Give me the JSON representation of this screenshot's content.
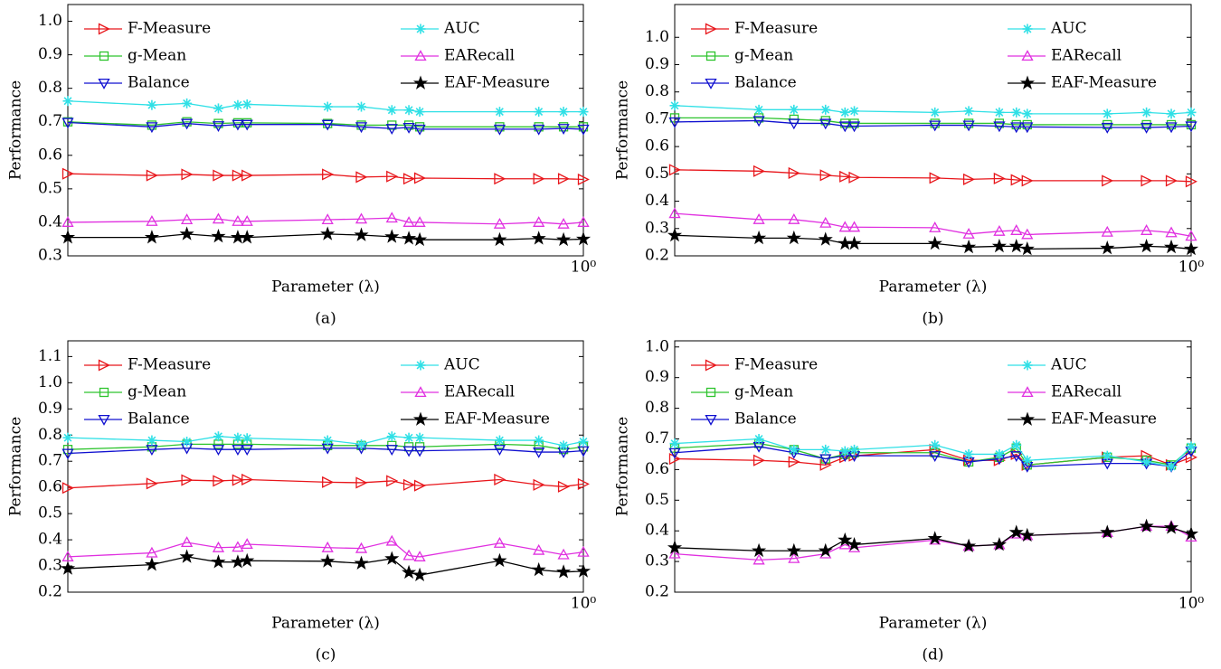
{
  "chart_data": [
    {
      "type": "line",
      "subtitle": "(a)",
      "xlabel": "Parameter (λ)",
      "ylabel": "Performance",
      "xlog": true,
      "xlim": [
        0.2,
        1
      ],
      "xticks": [
        {
          "value": 1,
          "label": "10⁰"
        }
      ],
      "ylim": [
        0.3,
        1.05
      ],
      "yticks": [
        0.3,
        0.4,
        0.5,
        0.6,
        0.7,
        0.8,
        0.9,
        {
          "value": 1,
          "label": "1.0"
        }
      ],
      "x": [
        0.2,
        0.26,
        0.29,
        0.32,
        0.34,
        0.35,
        0.45,
        0.5,
        0.55,
        0.58,
        0.6,
        0.77,
        0.87,
        0.94,
        1
      ],
      "series": [
        {
          "name": "F-Measure",
          "color": "#e8161b",
          "marker": "triangle-right",
          "values": [
            0.545,
            0.54,
            0.543,
            0.54,
            0.54,
            0.54,
            0.543,
            0.535,
            0.537,
            0.53,
            0.532,
            0.53,
            0.53,
            0.53,
            0.528
          ]
        },
        {
          "name": "g-Mean",
          "color": "#2ec42e",
          "marker": "square",
          "values": [
            0.7,
            0.69,
            0.7,
            0.695,
            0.697,
            0.697,
            0.695,
            0.69,
            0.69,
            0.69,
            0.685,
            0.685,
            0.685,
            0.685,
            0.685
          ]
        },
        {
          "name": "Balance",
          "color": "#1010d0",
          "marker": "triangle-down",
          "values": [
            0.698,
            0.685,
            0.695,
            0.688,
            0.692,
            0.692,
            0.692,
            0.685,
            0.68,
            0.683,
            0.678,
            0.678,
            0.678,
            0.68,
            0.678
          ]
        },
        {
          "name": "AUC",
          "color": "#30e0e6",
          "marker": "asterisk",
          "values": [
            0.762,
            0.75,
            0.755,
            0.74,
            0.75,
            0.752,
            0.745,
            0.745,
            0.735,
            0.735,
            0.73,
            0.73,
            0.73,
            0.73,
            0.73
          ]
        },
        {
          "name": "EARecall",
          "color": "#e030e0",
          "marker": "triangle-up",
          "values": [
            0.4,
            0.403,
            0.408,
            0.41,
            0.403,
            0.403,
            0.408,
            0.41,
            0.413,
            0.4,
            0.4,
            0.395,
            0.4,
            0.395,
            0.4
          ]
        },
        {
          "name": "EAF-Measure",
          "color": "#000000",
          "marker": "star",
          "values": [
            0.355,
            0.355,
            0.365,
            0.358,
            0.355,
            0.355,
            0.365,
            0.362,
            0.357,
            0.352,
            0.348,
            0.348,
            0.352,
            0.348,
            0.35
          ]
        }
      ]
    },
    {
      "type": "line",
      "subtitle": "(b)",
      "xlabel": "Parameter (λ)",
      "ylabel": "Performance",
      "xlog": true,
      "xlim": [
        0.2,
        1
      ],
      "xticks": [
        {
          "value": 1,
          "label": "10⁰"
        }
      ],
      "ylim": [
        0.2,
        1.12
      ],
      "yticks": [
        0.2,
        0.3,
        0.4,
        0.5,
        0.6,
        0.7,
        0.8,
        0.9,
        {
          "value": 1,
          "label": "1.0"
        }
      ],
      "x": [
        0.2,
        0.26,
        0.29,
        0.32,
        0.34,
        0.35,
        0.45,
        0.5,
        0.55,
        0.58,
        0.6,
        0.77,
        0.87,
        0.94,
        1
      ],
      "series": [
        {
          "name": "F-Measure",
          "color": "#e8161b",
          "marker": "triangle-right",
          "values": [
            0.515,
            0.51,
            0.503,
            0.495,
            0.49,
            0.487,
            0.485,
            0.48,
            0.483,
            0.478,
            0.475,
            0.475,
            0.475,
            0.475,
            0.472
          ]
        },
        {
          "name": "g-Mean",
          "color": "#2ec42e",
          "marker": "square",
          "values": [
            0.705,
            0.705,
            0.7,
            0.695,
            0.685,
            0.685,
            0.685,
            0.685,
            0.685,
            0.68,
            0.68,
            0.68,
            0.68,
            0.68,
            0.68
          ]
        },
        {
          "name": "Balance",
          "color": "#1010d0",
          "marker": "triangle-down",
          "values": [
            0.69,
            0.695,
            0.685,
            0.685,
            0.675,
            0.675,
            0.678,
            0.678,
            0.675,
            0.672,
            0.672,
            0.67,
            0.67,
            0.672,
            0.675
          ]
        },
        {
          "name": "AUC",
          "color": "#30e0e6",
          "marker": "asterisk",
          "values": [
            0.75,
            0.735,
            0.735,
            0.735,
            0.725,
            0.73,
            0.725,
            0.73,
            0.725,
            0.725,
            0.72,
            0.72,
            0.725,
            0.72,
            0.725
          ]
        },
        {
          "name": "EARecall",
          "color": "#e030e0",
          "marker": "triangle-up",
          "values": [
            0.355,
            0.333,
            0.333,
            0.32,
            0.305,
            0.305,
            0.303,
            0.28,
            0.29,
            0.293,
            0.278,
            0.287,
            0.293,
            0.285,
            0.272
          ]
        },
        {
          "name": "EAF-Measure",
          "color": "#000000",
          "marker": "star",
          "values": [
            0.275,
            0.265,
            0.265,
            0.26,
            0.245,
            0.245,
            0.245,
            0.232,
            0.235,
            0.235,
            0.225,
            0.228,
            0.235,
            0.232,
            0.225
          ]
        }
      ]
    },
    {
      "type": "line",
      "subtitle": "(c)",
      "xlabel": "Parameter (λ)",
      "ylabel": "Performance",
      "xlog": true,
      "xlim": [
        0.2,
        1
      ],
      "xticks": [
        {
          "value": 1,
          "label": "10⁰"
        }
      ],
      "ylim": [
        0.2,
        1.16
      ],
      "yticks": [
        0.2,
        0.3,
        0.4,
        0.5,
        0.6,
        0.7,
        0.8,
        0.9,
        {
          "value": 1,
          "label": "1.0"
        },
        1.1
      ],
      "x": [
        0.2,
        0.26,
        0.29,
        0.32,
        0.34,
        0.35,
        0.45,
        0.5,
        0.55,
        0.58,
        0.6,
        0.77,
        0.87,
        0.94,
        1
      ],
      "series": [
        {
          "name": "F-Measure",
          "color": "#e8161b",
          "marker": "triangle-right",
          "values": [
            0.598,
            0.615,
            0.628,
            0.625,
            0.628,
            0.63,
            0.62,
            0.618,
            0.625,
            0.61,
            0.607,
            0.63,
            0.61,
            0.603,
            0.613
          ]
        },
        {
          "name": "g-Mean",
          "color": "#2ec42e",
          "marker": "square",
          "values": [
            0.745,
            0.755,
            0.765,
            0.765,
            0.765,
            0.765,
            0.76,
            0.76,
            0.76,
            0.755,
            0.755,
            0.765,
            0.76,
            0.745,
            0.755
          ]
        },
        {
          "name": "Balance",
          "color": "#1010d0",
          "marker": "triangle-down",
          "values": [
            0.73,
            0.745,
            0.75,
            0.745,
            0.745,
            0.745,
            0.75,
            0.75,
            0.745,
            0.74,
            0.74,
            0.745,
            0.735,
            0.735,
            0.74
          ]
        },
        {
          "name": "AUC",
          "color": "#30e0e6",
          "marker": "asterisk",
          "values": [
            0.79,
            0.78,
            0.775,
            0.795,
            0.79,
            0.788,
            0.78,
            0.765,
            0.795,
            0.79,
            0.79,
            0.78,
            0.78,
            0.76,
            0.775
          ]
        },
        {
          "name": "EARecall",
          "color": "#e030e0",
          "marker": "triangle-up",
          "values": [
            0.335,
            0.35,
            0.39,
            0.37,
            0.372,
            0.383,
            0.37,
            0.367,
            0.395,
            0.34,
            0.335,
            0.387,
            0.36,
            0.343,
            0.353
          ]
        },
        {
          "name": "EAF-Measure",
          "color": "#000000",
          "marker": "star",
          "values": [
            0.29,
            0.305,
            0.335,
            0.315,
            0.315,
            0.32,
            0.318,
            0.31,
            0.328,
            0.275,
            0.265,
            0.32,
            0.285,
            0.277,
            0.28
          ]
        }
      ]
    },
    {
      "type": "line",
      "subtitle": "(d)",
      "xlabel": "Parameter (λ)",
      "ylabel": "Performance",
      "xlog": true,
      "xlim": [
        0.2,
        1
      ],
      "xticks": [
        {
          "value": 1,
          "label": "10⁰"
        }
      ],
      "ylim": [
        0.2,
        1.02
      ],
      "yticks": [
        0.2,
        0.3,
        0.4,
        0.5,
        0.6,
        0.7,
        0.8,
        0.9,
        {
          "value": 1,
          "label": "1.0"
        }
      ],
      "x": [
        0.2,
        0.26,
        0.29,
        0.32,
        0.34,
        0.35,
        0.45,
        0.5,
        0.55,
        0.58,
        0.6,
        0.77,
        0.87,
        0.94,
        1
      ],
      "series": [
        {
          "name": "F-Measure",
          "color": "#e8161b",
          "marker": "triangle-right",
          "values": [
            0.635,
            0.63,
            0.625,
            0.615,
            0.64,
            0.645,
            0.665,
            0.63,
            0.63,
            0.65,
            0.615,
            0.64,
            0.645,
            0.615,
            0.64
          ]
        },
        {
          "name": "g-Mean",
          "color": "#2ec42e",
          "marker": "square",
          "values": [
            0.67,
            0.685,
            0.665,
            0.635,
            0.65,
            0.655,
            0.655,
            0.625,
            0.64,
            0.67,
            0.615,
            0.64,
            0.63,
            0.615,
            0.67
          ]
        },
        {
          "name": "Balance",
          "color": "#1010d0",
          "marker": "triangle-down",
          "values": [
            0.655,
            0.675,
            0.655,
            0.635,
            0.645,
            0.645,
            0.645,
            0.625,
            0.635,
            0.645,
            0.61,
            0.62,
            0.62,
            0.61,
            0.66
          ]
        },
        {
          "name": "AUC",
          "color": "#30e0e6",
          "marker": "asterisk",
          "values": [
            0.685,
            0.7,
            0.665,
            0.665,
            0.66,
            0.665,
            0.68,
            0.65,
            0.65,
            0.68,
            0.63,
            0.645,
            0.625,
            0.61,
            0.675
          ]
        },
        {
          "name": "EARecall",
          "color": "#e030e0",
          "marker": "triangle-up",
          "values": [
            0.325,
            0.305,
            0.31,
            0.325,
            0.355,
            0.345,
            0.37,
            0.35,
            0.355,
            0.39,
            0.385,
            0.395,
            0.415,
            0.415,
            0.38
          ]
        },
        {
          "name": "EAF-Measure",
          "color": "#000000",
          "marker": "star",
          "values": [
            0.345,
            0.335,
            0.335,
            0.335,
            0.37,
            0.355,
            0.375,
            0.35,
            0.355,
            0.395,
            0.385,
            0.395,
            0.415,
            0.41,
            0.39
          ]
        }
      ]
    }
  ]
}
